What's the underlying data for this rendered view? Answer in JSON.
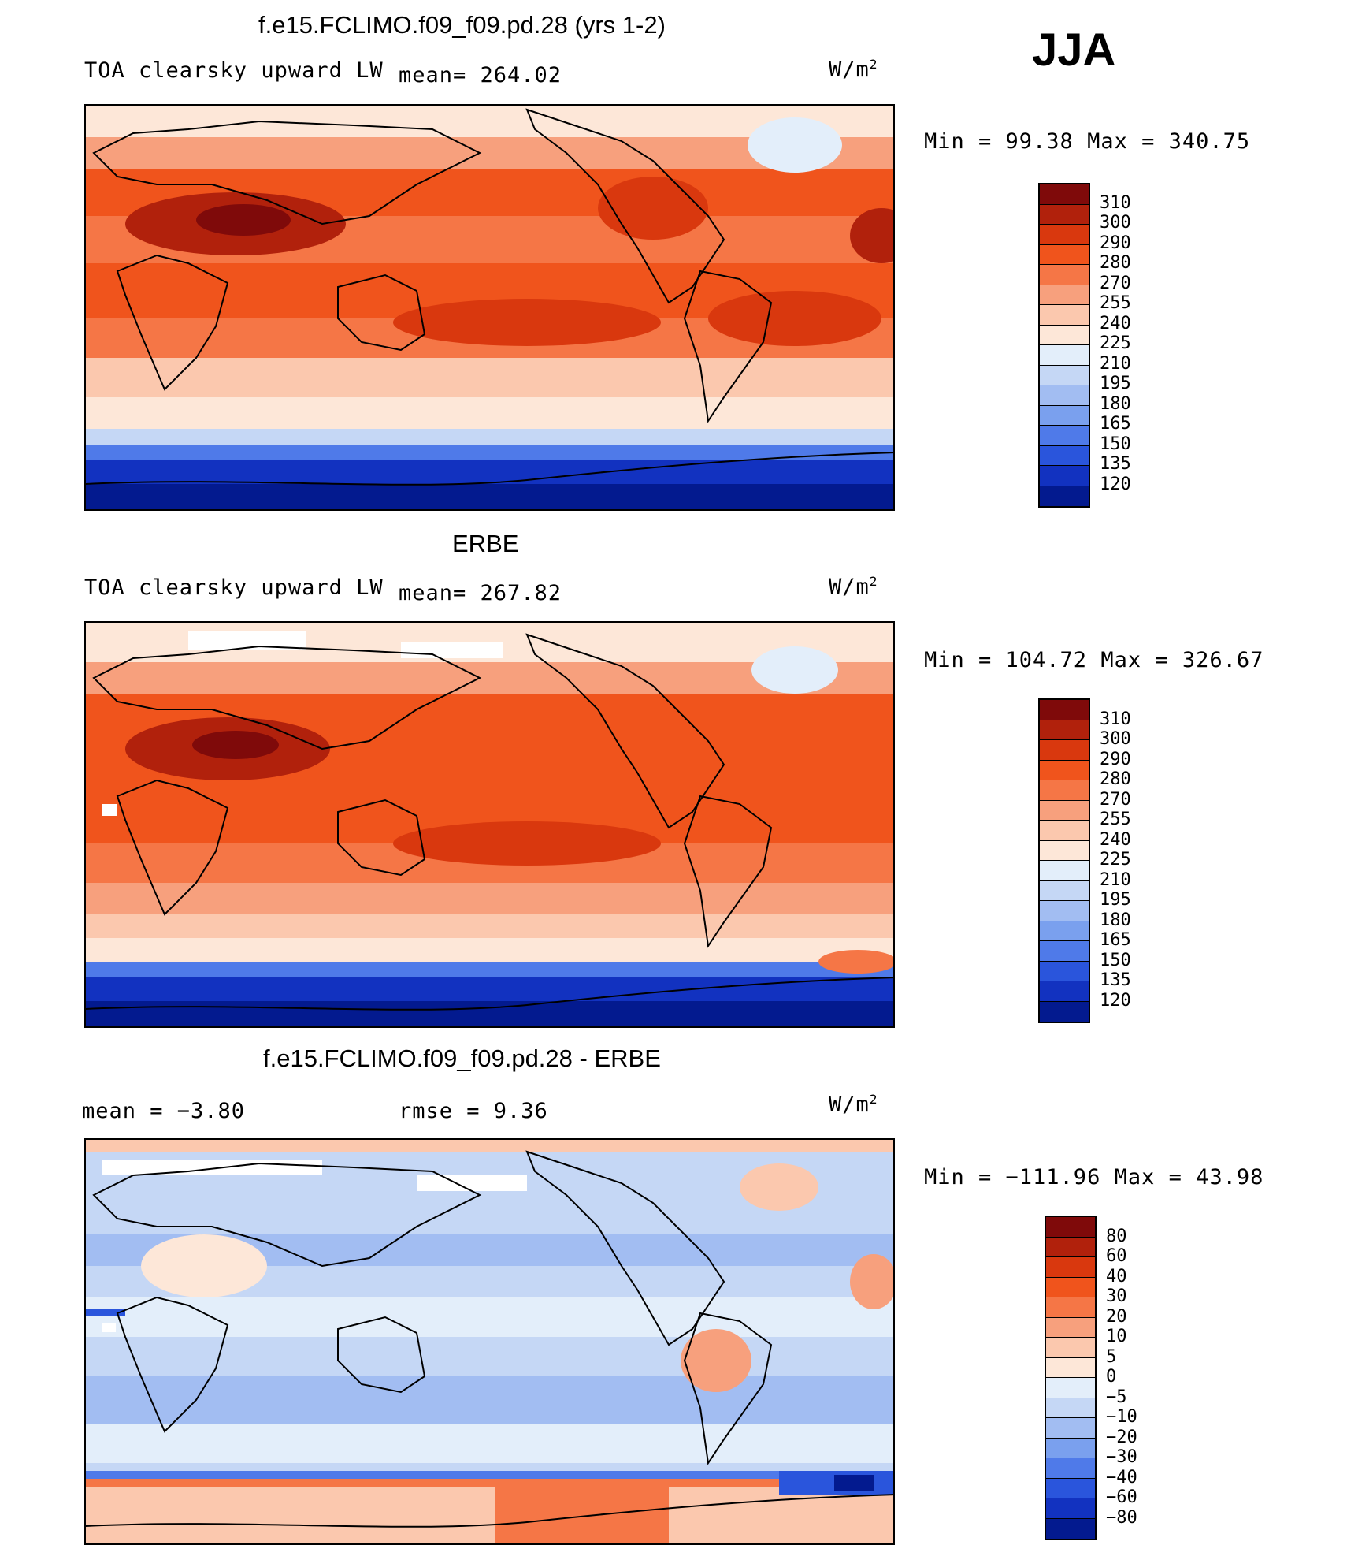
{
  "season": "JJA",
  "units_base": "W/m",
  "units_exp": "2",
  "panels": [
    {
      "title": "f.e15.FCLIMO.f09_f09.pd.28 (yrs 1-2)",
      "left_label": "TOA clearsky upward LW",
      "stat_text": "mean= 264.02",
      "minmax_text": "Min =  99.38 Max = 340.75"
    },
    {
      "title": "ERBE",
      "left_label": "TOA clearsky upward LW",
      "stat_text": "mean= 267.82",
      "minmax_text": "Min = 104.72 Max = 326.67"
    },
    {
      "title": "f.e15.FCLIMO.f09_f09.pd.28 - ERBE",
      "left_label": "mean =   −3.80",
      "stat_text": "rmse =   9.36",
      "minmax_text": "Min = −111.96 Max =  43.98"
    }
  ],
  "colorbars": {
    "absolute": {
      "labels": [
        "310",
        "300",
        "290",
        "280",
        "270",
        "255",
        "240",
        "225",
        "210",
        "195",
        "180",
        "165",
        "150",
        "135",
        "120"
      ],
      "colors": [
        "#7f0a0a",
        "#b1210c",
        "#d9380e",
        "#f0541c",
        "#f57646",
        "#f7a07d",
        "#fbc8ae",
        "#fde7d8",
        "#e3eefa",
        "#c5d7f5",
        "#a2bdf2",
        "#7aa0ee",
        "#4f7ae9",
        "#2a55dc",
        "#1232c0",
        "#031a8f"
      ]
    },
    "difference": {
      "labels": [
        "80",
        "60",
        "40",
        "30",
        "20",
        "10",
        "5",
        "0",
        "−5",
        "−10",
        "−20",
        "−30",
        "−40",
        "−60",
        "−80"
      ],
      "colors": [
        "#7f0a0a",
        "#b1210c",
        "#d9380e",
        "#f0541c",
        "#f57646",
        "#f7a07d",
        "#fbc8ae",
        "#fde7d8",
        "#e3eefa",
        "#c5d7f5",
        "#a2bdf2",
        "#7aa0ee",
        "#4f7ae9",
        "#2a55dc",
        "#1232c0",
        "#031a8f"
      ]
    }
  }
}
